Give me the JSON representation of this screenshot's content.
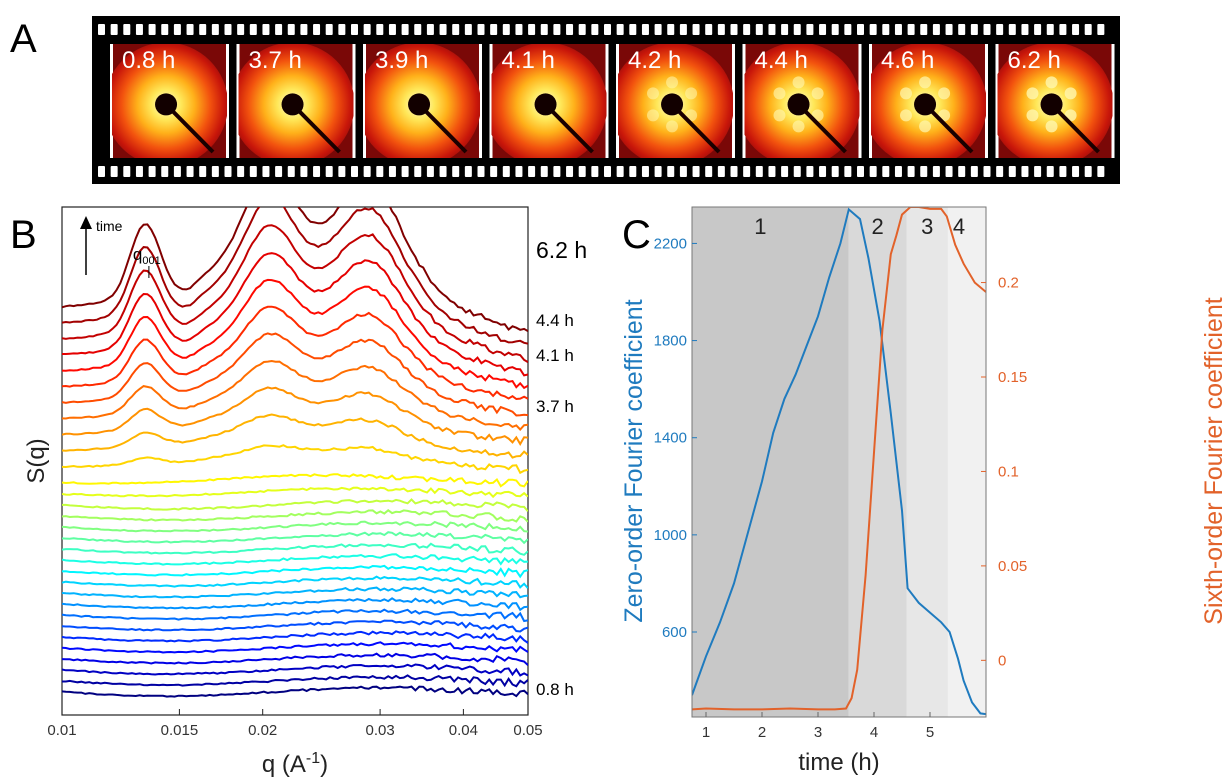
{
  "panels": {
    "a": "A",
    "b": "B",
    "c": "C"
  },
  "film_frames": [
    "0.8 h",
    "3.7 h",
    "3.9 h",
    "4.1 h",
    "4.2 h",
    "4.4 h",
    "4.6 h",
    "6.2 h"
  ],
  "colors": {
    "zero_order": "#1f7bbf",
    "sixth_order": "#e2622a",
    "film": "#000000",
    "region_1": "#c8c8c8",
    "region_2": "#d9d9d9",
    "region_3": "#e7e7e7",
    "region_4": "#f1f1f1"
  },
  "chart_data": [
    {
      "type": "line",
      "panel": "B",
      "xlabel_main": "q (A",
      "xlabel_sup": "-1",
      "xlabel_end": ")",
      "ylabel": "S(q)",
      "x_scale": "log",
      "xlim": [
        0.01,
        0.05
      ],
      "x_ticks": [
        "0.01",
        "0.015",
        "0.02",
        "0.03",
        "0.04",
        "0.05"
      ],
      "time_arrow_label": "time",
      "peak_label_main": "q",
      "peak_label_sub": "001",
      "peak_q": 0.0135,
      "curve_labels": [
        {
          "text": "6.2 h",
          "curve_index": 30
        },
        {
          "text": "4.4 h",
          "curve_index": 25
        },
        {
          "text": "4.1 h",
          "curve_index": 23
        },
        {
          "text": "3.7 h",
          "curve_index": 19
        },
        {
          "text": "0.8 h",
          "curve_index": 0
        }
      ],
      "num_curves": 31,
      "colormap": "jet, blue (0.8 h) to dark red (6.2 h)"
    },
    {
      "type": "line",
      "panel": "C",
      "xlabel": "time (h)",
      "ylabel_left": "Zero-order Fourier coefficient",
      "ylabel_right": "Sixth-order Fourier coefficient",
      "xlim": [
        0.75,
        6.0
      ],
      "ylim_left": [
        250,
        2350
      ],
      "ylim_right": [
        -0.03,
        0.24
      ],
      "x_ticks": [
        "1",
        "2",
        "3",
        "4",
        "5"
      ],
      "y_ticks_left": [
        "600",
        "1000",
        "1400",
        "1800",
        "2200"
      ],
      "y_ticks_right": [
        "0",
        "0.05",
        "0.1",
        "0.15",
        "0.2"
      ],
      "regions": [
        {
          "label": "1",
          "x": [
            0.75,
            3.55
          ]
        },
        {
          "label": "2",
          "x": [
            3.55,
            4.58
          ]
        },
        {
          "label": "3",
          "x": [
            4.58,
            5.32
          ]
        },
        {
          "label": "4",
          "x": [
            5.32,
            6.0
          ]
        }
      ],
      "series": [
        {
          "name": "Zero-order Fourier coefficient",
          "axis": "left",
          "x": [
            0.75,
            1.0,
            1.25,
            1.5,
            1.75,
            2.0,
            2.2,
            2.4,
            2.6,
            2.8,
            3.0,
            3.2,
            3.4,
            3.55,
            3.65,
            3.75,
            3.9,
            4.1,
            4.3,
            4.5,
            4.6,
            4.8,
            5.0,
            5.2,
            5.35,
            5.5,
            5.6,
            5.75,
            5.9,
            6.0
          ],
          "values": [
            340,
            500,
            640,
            800,
            1010,
            1220,
            1420,
            1560,
            1660,
            1780,
            1900,
            2060,
            2200,
            2340,
            2320,
            2300,
            2140,
            1880,
            1500,
            1100,
            780,
            720,
            680,
            640,
            600,
            490,
            400,
            310,
            265,
            262
          ]
        },
        {
          "name": "Sixth-order Fourier coefficient",
          "axis": "right",
          "x": [
            0.75,
            1.0,
            1.5,
            2.0,
            2.5,
            3.0,
            3.3,
            3.5,
            3.6,
            3.7,
            3.85,
            4.0,
            4.15,
            4.3,
            4.4,
            4.5,
            4.65,
            4.8,
            5.0,
            5.2,
            5.3,
            5.45,
            5.6,
            5.8,
            6.0
          ],
          "values": [
            -0.026,
            -0.0255,
            -0.026,
            -0.026,
            -0.0255,
            -0.026,
            -0.026,
            -0.0255,
            -0.02,
            -0.005,
            0.045,
            0.11,
            0.175,
            0.215,
            0.225,
            0.236,
            0.24,
            0.24,
            0.239,
            0.239,
            0.235,
            0.22,
            0.21,
            0.2,
            0.195
          ]
        }
      ]
    }
  ]
}
